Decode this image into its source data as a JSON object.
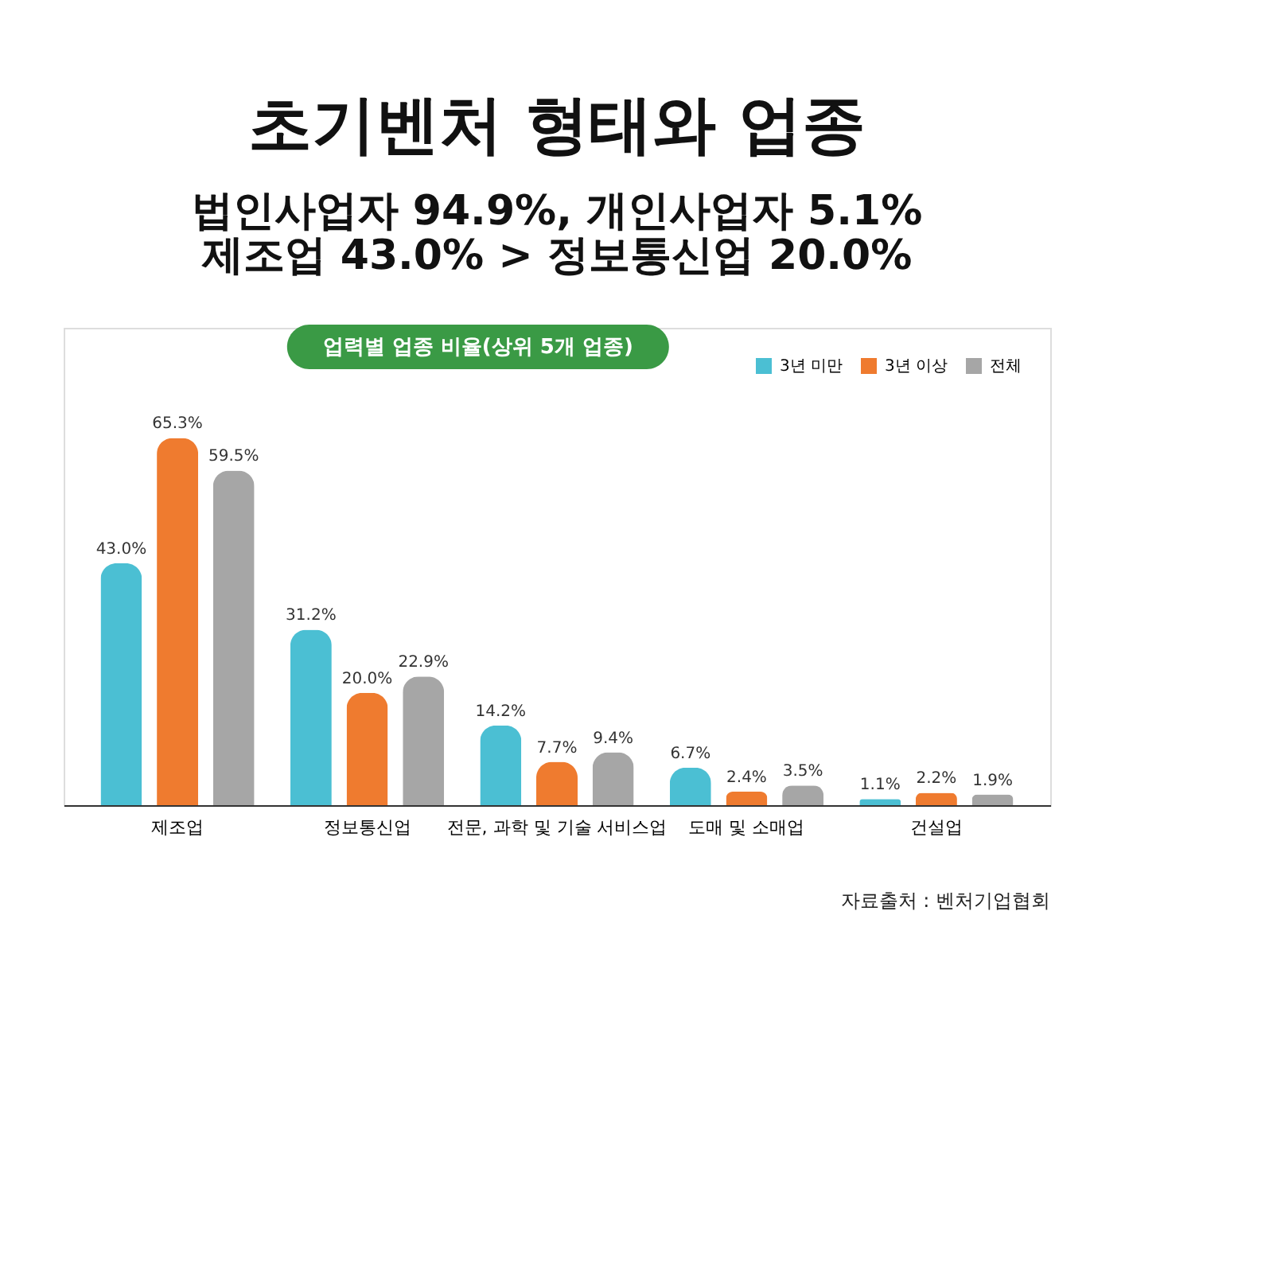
{
  "chart_data": {
    "type": "bar",
    "title": "초기벤처 형태와 업종",
    "subtitle": [
      "법인사업자 94.9%, 개인사업자 5.1%",
      "제조업 43.0% > 정보통신업 20.0%"
    ],
    "categories": [
      "제조업",
      "정보통신업",
      "전문, 과학 및 기술 서비스업",
      "도매 및 소매업",
      "건설업"
    ],
    "series": [
      {
        "name": "3년 미만",
        "color": "#4bbfd3",
        "values": [
          43.0,
          31.2,
          14.2,
          6.7,
          1.1
        ],
        "value_labels": [
          "43.0%",
          "31.2%",
          "14.2%",
          "6.7%",
          "1.1%"
        ]
      },
      {
        "name": "3년 이상",
        "color": "#ef7b2f",
        "values": [
          65.3,
          20.0,
          7.7,
          2.4,
          2.2
        ],
        "value_labels": [
          "65.3%",
          "20.0%",
          "7.7%",
          "2.4%",
          "2.2%"
        ]
      },
      {
        "name": "전체",
        "color": "#a6a6a6",
        "values": [
          59.5,
          22.9,
          9.4,
          3.5,
          1.9
        ],
        "value_labels": [
          "59.5%",
          "22.9%",
          "9.4%",
          "3.5%",
          "1.9%"
        ]
      }
    ],
    "legend": "top right",
    "grid": false,
    "annotations": [
      "업력별 업종 비율(상위 5개 업종)",
      "자료출처 : 벤처기업협회"
    ]
  }
}
